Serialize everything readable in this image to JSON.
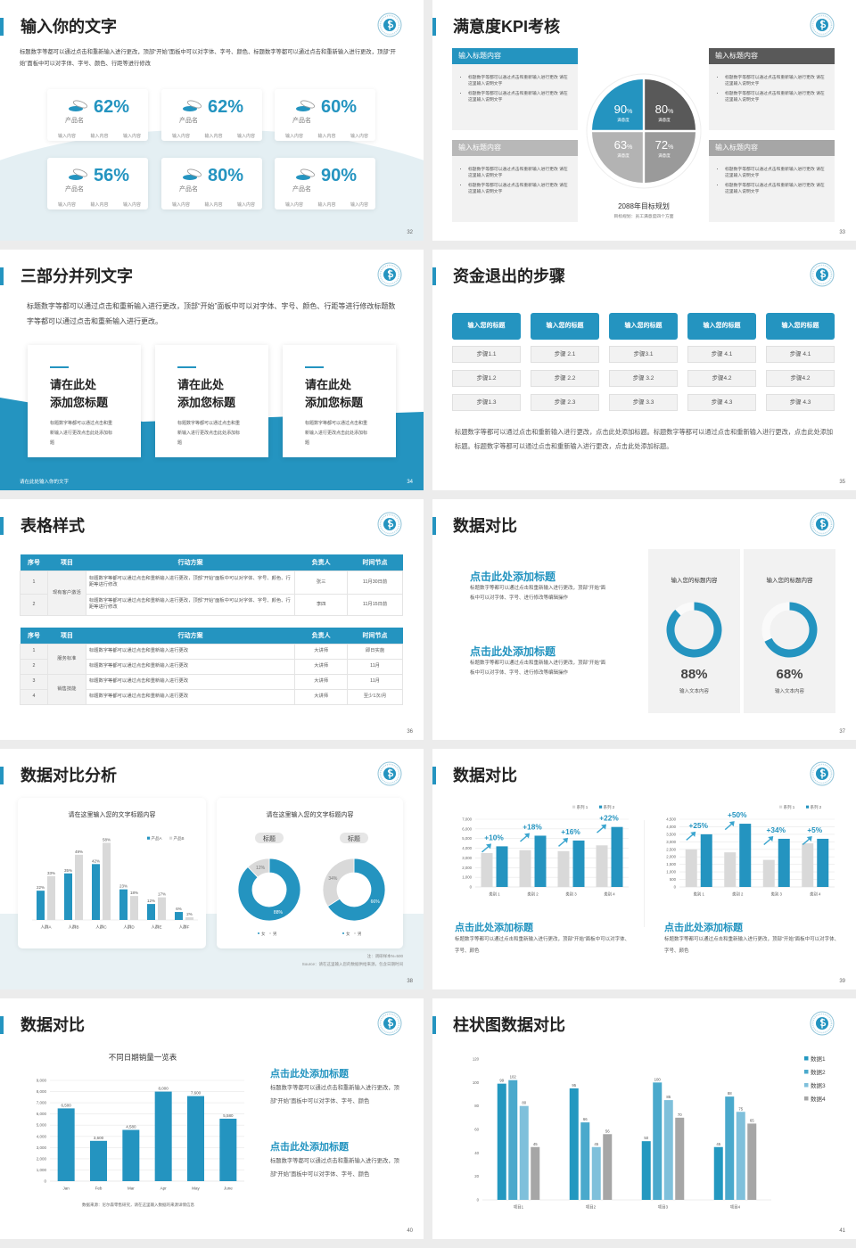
{
  "colors": {
    "accent": "#2494c0",
    "dark": "#595959",
    "gray": "#a6a6a6",
    "light": "#d9d9d9",
    "c2": "#4aa9cc",
    "c3": "#7fc0db"
  },
  "slides": [
    {
      "title": "输入你的文字",
      "desc": "标题数字等都可以通过点击和重新输入进行更改，顶部“开始”面板中可以对字体、字号、颜色、标题数字等都可以通过点击和重新输入进行更改，顶部“开始”面板中可以对字体、字号、颜色、行距等进行修改",
      "cards": [
        {
          "value": "62%",
          "name": "产品名",
          "items": [
            "输入内容",
            "输入内容",
            "输入内容"
          ]
        },
        {
          "value": "62%",
          "name": "产品名",
          "items": [
            "输入内容",
            "输入内容",
            "输入内容"
          ]
        },
        {
          "value": "60%",
          "name": "产品名",
          "items": [
            "输入内容",
            "输入内容",
            "输入内容"
          ]
        },
        {
          "value": "56%",
          "name": "产品名",
          "items": [
            "输入内容",
            "输入内容",
            "输入内容"
          ]
        },
        {
          "value": "80%",
          "name": "产品名",
          "items": [
            "输入内容",
            "输入内容",
            "输入内容"
          ]
        },
        {
          "value": "90%",
          "name": "产品名",
          "items": [
            "输入内容",
            "输入内容",
            "输入内容"
          ]
        }
      ],
      "page": "32"
    },
    {
      "title": "满意度KPI考核",
      "boxes": [
        {
          "heading": "输入标题内容",
          "bullets": [
            "标题数字等都可以通过点击和重新输入进行更改 请在这里输入说明文字",
            "标题数字等都可以通过点击和重新输入进行更改 请在这里输入说明文字"
          ]
        },
        {
          "heading": "输入标题内容",
          "bullets": [
            "标题数字等都可以通过点击和重新输入进行更改 请在这里输入说明文字",
            "标题数字等都可以通过点击和重新输入进行更改 请在这里输入说明文字"
          ]
        },
        {
          "heading": "输入标题内容",
          "bullets": [
            "标题数字等都可以通过点击和重新输入进行更改 请在这里输入说明文字",
            "标题数字等都可以通过点击和重新输入进行更改 请在这里输入说明文字"
          ]
        },
        {
          "heading": "输入标题内容",
          "bullets": [
            "标题数字等都可以通过点击和重新输入进行更改 请在这里输入说明文字",
            "标题数字等都可以通过点击和重新输入进行更改 请在这里输入说明文字"
          ]
        }
      ],
      "quadrants": [
        {
          "value": "90",
          "unit": "%",
          "label": "满意度",
          "color": "#2494c0"
        },
        {
          "value": "80",
          "unit": "%",
          "label": "满意度",
          "color": "#595959"
        },
        {
          "value": "63",
          "unit": "%",
          "label": "满意度",
          "color": "#b3b3b3"
        },
        {
          "value": "72",
          "unit": "%",
          "label": "满意度",
          "color": "#9a9a9a"
        }
      ],
      "goal_title": "2088年目标规划",
      "goal_sub": "目标规划：员工满意度四个方面",
      "page": "33"
    },
    {
      "title": "三部分并列文字",
      "desc": "标题数字等都可以通过点击和重新输入进行更改，顶部“开始”面板中可以对字体、字号、颜色、行距等进行修改标题数字等都可以通过点击和重新输入进行更改。",
      "cards": [
        {
          "line1": "请在此处",
          "line2": "添加您标题",
          "body": "标题数字等都可以通过点击和重新输入进行更改点击此处添加标题"
        },
        {
          "line1": "请在此处",
          "line2": "添加您标题",
          "body": "标题数字等都可以通过点击和重新输入进行更改点击此处添加标题"
        },
        {
          "line1": "请在此处",
          "line2": "添加您标题",
          "body": "标题数字等都可以通过点击和重新输入进行更改点击此处添加标题"
        }
      ],
      "footer": "请在此处输入你的文字",
      "page": "34"
    },
    {
      "title": "资金退出的步骤",
      "columns": [
        {
          "header": "输入您的标题",
          "steps": [
            "步骤1.1",
            "步骤1.2",
            "步骤1.3"
          ]
        },
        {
          "header": "输入您的标题",
          "steps": [
            "步骤 2.1",
            "步骤 2.2",
            "步骤 2.3"
          ]
        },
        {
          "header": "输入您的标题",
          "steps": [
            "步骤3.1",
            "步骤 3.2",
            "步骤 3.3"
          ]
        },
        {
          "header": "输入您的标题",
          "steps": [
            "步骤 4.1",
            "步骤4.2",
            "步骤 4.3"
          ]
        },
        {
          "header": "输入您的标题",
          "steps": [
            "步骤 4.1",
            "步骤4.2",
            "步骤 4.3"
          ]
        }
      ],
      "desc": "标题数字等都可以通过点击和重新输入进行更改，点击此处添加标题。标题数字等都可以通过点击和重新输入进行更改，点击此处添加标题。标题数字等都可以通过点击和重新输入进行更改，点击此处添加标题。",
      "page": "35"
    },
    {
      "title": "表格样式",
      "tables": [
        {
          "headers": [
            "序号",
            "项目",
            "行动方案",
            "负责人",
            "时间节点"
          ],
          "groups": [
            {
              "item": "现有客户激活",
              "rows": [
                [
                  "1",
                  "标题数字等都可以通过点击和重新输入进行更改，顶部“开始”面板中可以对字体、字号、颜色、行距等进行修改",
                  "张三",
                  "11月30日前"
                ],
                [
                  "2",
                  "标题数字等都可以通过点击和重新输入进行更改，顶部“开始”面板中可以对字体、字号、颜色、行距等进行修改",
                  "李四",
                  "11月15日前"
                ]
              ]
            }
          ]
        },
        {
          "headers": [
            "序号",
            "项目",
            "行动方案",
            "负责人",
            "时间节点"
          ],
          "groups": [
            {
              "item": "服务标准",
              "rows": [
                [
                  "1",
                  "标题数字等都可以通过点击和重新输入进行更改",
                  "大讲师",
                  "即日实施"
                ],
                [
                  "2",
                  "标题数字等都可以通过点击和重新输入进行更改",
                  "大讲师",
                  "11月"
                ]
              ]
            },
            {
              "item": "销售技能",
              "rows": [
                [
                  "3",
                  "标题数字等都可以通过点击和重新输入进行更改",
                  "大讲师",
                  "11月"
                ],
                [
                  "4",
                  "标题数字等都可以通过点击和重新输入进行更改",
                  "大讲师",
                  "至少1次/月"
                ]
              ]
            }
          ]
        }
      ],
      "page": "36"
    },
    {
      "title": "数据对比",
      "blocks": [
        {
          "title": "点击此处添加标题",
          "body": "标题数字等都可以通过点击和重新输入进行更改，顶部“开始”面板中可以对字体、字号、进行修改等编辑操作"
        },
        {
          "title": "点击此处添加标题",
          "body": "标题数字等都可以通过点击和重新输入进行更改，顶部“开始”面板中可以对字体、字号、进行修改等编辑操作"
        }
      ],
      "panels": [
        {
          "title": "输入您的标题内容",
          "value": 88,
          "pct": "88%",
          "caption": "输入文本内容"
        },
        {
          "title": "输入您的标题内容",
          "value": 68,
          "pct": "68%",
          "caption": "输入文本内容"
        }
      ],
      "page": "37"
    },
    {
      "title": "数据对比分析",
      "left_title": "请在这里输入您的文字标题内容",
      "right_title": "请在这里输入您的文字标题内容",
      "donut_tags": [
        "标题",
        "标题"
      ],
      "note": "注：调研样本N=500",
      "source": "Source：请在这里输入您的数据供给来源，包含日期时间",
      "page": "38"
    },
    {
      "title": "数据对比",
      "blocks": [
        {
          "title": "点击此处添加标题",
          "body": "标题数字等都可以通过点击和重新输入进行更改，顶部“开始”面板中可以对字体、字号、颜色"
        },
        {
          "title": "点击此处添加标题",
          "body": "标题数字等都可以通过点击和重新输入进行更改，顶部“开始”面板中可以对字体、字号、颜色"
        }
      ],
      "page": "39"
    },
    {
      "title": "数据对比",
      "source": "数据来源：尼尔森零售研究，请在这里输入数据的来源详情信息",
      "blocks": [
        {
          "title": "点击此处添加标题",
          "body": "标题数字等都可以通过点击和重新输入进行更改，顶部“开始”面板中可以对字体、字号、颜色"
        },
        {
          "title": "点击此处添加标题",
          "body": "标题数字等都可以通过点击和重新输入进行更改，顶部“开始”面板中可以对字体、字号、颜色"
        }
      ],
      "page": "40"
    },
    {
      "title": "柱状图数据对比",
      "page": "41"
    }
  ],
  "chart_data": [
    {
      "type": "bar",
      "categories": [
        "人群A",
        "人群B",
        "人群C",
        "人群D",
        "人群E",
        "人群F"
      ],
      "ylim": [
        0,
        65
      ],
      "legend": "top-right",
      "grid": false,
      "series": [
        {
          "name": "产品A",
          "color": "#2494c0",
          "values": [
            22,
            35,
            42,
            23,
            12,
            6
          ],
          "labels": [
            "22%",
            "35%",
            "42%",
            "23%",
            "12%",
            "6%"
          ]
        },
        {
          "name": "产品B",
          "color": "#d9d9d9",
          "values": [
            33,
            49,
            58,
            18,
            17,
            2
          ],
          "labels": [
            "33%",
            "49%",
            "58%",
            "18%",
            "17%",
            "2%"
          ]
        }
      ]
    },
    {
      "type": "pie",
      "donut": true,
      "legend": "bottom",
      "slices": [
        {
          "name": "女",
          "value": 88,
          "label": "88%",
          "color": "#2494c0"
        },
        {
          "name": "男",
          "value": 12,
          "label": "12%",
          "color": "#d9d9d9"
        }
      ]
    },
    {
      "type": "pie",
      "donut": true,
      "legend": "bottom",
      "slices": [
        {
          "name": "女",
          "value": 66,
          "label": "66%",
          "color": "#2494c0"
        },
        {
          "name": "男",
          "value": 34,
          "label": "34%",
          "color": "#d9d9d9"
        }
      ]
    },
    {
      "type": "bar",
      "categories": [
        "类别 1",
        "类别 2",
        "类别 3",
        "类别 4"
      ],
      "ylim": [
        0,
        7000
      ],
      "grid": true,
      "legend": "top-right",
      "yticks": [
        0,
        1000,
        2000,
        3000,
        4000,
        5000,
        6000,
        7000
      ],
      "ytick_labels": [
        "0",
        "1,000",
        "2,000",
        "3,000",
        "4,000",
        "5,000",
        "6,000",
        "7,000"
      ],
      "annotations": [
        "+10%",
        "+18%",
        "+16%",
        "+22%"
      ],
      "series": [
        {
          "name": "系列 1",
          "color": "#d9d9d9",
          "values": [
            3500,
            3800,
            3700,
            4300
          ]
        },
        {
          "name": "系列 2",
          "color": "#2494c0",
          "values": [
            4200,
            5300,
            4800,
            6200
          ]
        }
      ]
    },
    {
      "type": "bar",
      "categories": [
        "类别 1",
        "类别 2",
        "类别 3",
        "类别 4"
      ],
      "ylim": [
        0,
        4500
      ],
      "grid": true,
      "legend": "top-right",
      "yticks": [
        0,
        500,
        1000,
        1500,
        2000,
        2500,
        3000,
        3500,
        4000,
        4500
      ],
      "ytick_labels": [
        "0",
        "500",
        "1,000",
        "1,500",
        "2,000",
        "2,500",
        "3,000",
        "3,500",
        "4,000",
        "4,500"
      ],
      "annotations": [
        "+25%",
        "+50%",
        "+34%",
        "+5%"
      ],
      "series": [
        {
          "name": "系列 1",
          "color": "#d9d9d9",
          "values": [
            2500,
            2300,
            1800,
            2900
          ]
        },
        {
          "name": "系列 2",
          "color": "#2494c0",
          "values": [
            3500,
            4200,
            3200,
            3200
          ]
        }
      ]
    },
    {
      "type": "bar",
      "title": "不同日期销量一览表",
      "categories": [
        "Jan",
        "Feb",
        "Mar",
        "Apr",
        "May",
        "June"
      ],
      "ylim": [
        0,
        9000
      ],
      "grid": true,
      "yticks": [
        0,
        1000,
        2000,
        3000,
        4000,
        5000,
        6000,
        7000,
        8000,
        9000
      ],
      "ytick_labels": [
        "0",
        "1,000",
        "2,000",
        "3,000",
        "4,000",
        "5,000",
        "6,000",
        "7,000",
        "8,000",
        "9,000"
      ],
      "series": [
        {
          "color": "#2494c0",
          "values": [
            6500,
            3600,
            4580,
            8000,
            7600,
            5580
          ],
          "labels": [
            "6,500",
            "3,600",
            "4,580",
            "8,000",
            "7,600",
            "5,580"
          ]
        }
      ]
    },
    {
      "type": "bar",
      "categories": [
        "项目1",
        "项目2",
        "项目3",
        "项目4"
      ],
      "ylim": [
        0,
        120
      ],
      "grid": false,
      "legend": "right",
      "yticks": [
        0,
        20,
        40,
        60,
        80,
        100,
        120
      ],
      "ytick_labels": [
        "0",
        "20",
        "40",
        "60",
        "80",
        "100",
        "120"
      ],
      "series": [
        {
          "name": "数据1",
          "color": "#2398c0",
          "values": [
            99,
            95,
            50,
            45
          ],
          "labels": [
            "99",
            "95",
            "50",
            "45"
          ]
        },
        {
          "name": "数据2",
          "color": "#4aa9cc",
          "values": [
            102,
            66,
            100,
            88
          ],
          "labels": [
            "102",
            "66",
            "100",
            "88"
          ]
        },
        {
          "name": "数据3",
          "color": "#7fc0db",
          "values": [
            80,
            45,
            85,
            75
          ],
          "labels": [
            "80",
            "45",
            "85",
            "75"
          ]
        },
        {
          "name": "数据4",
          "color": "#a6a6a6",
          "values": [
            45,
            56,
            70,
            65
          ],
          "labels": [
            "45",
            "56",
            "70",
            "65"
          ]
        }
      ]
    }
  ]
}
